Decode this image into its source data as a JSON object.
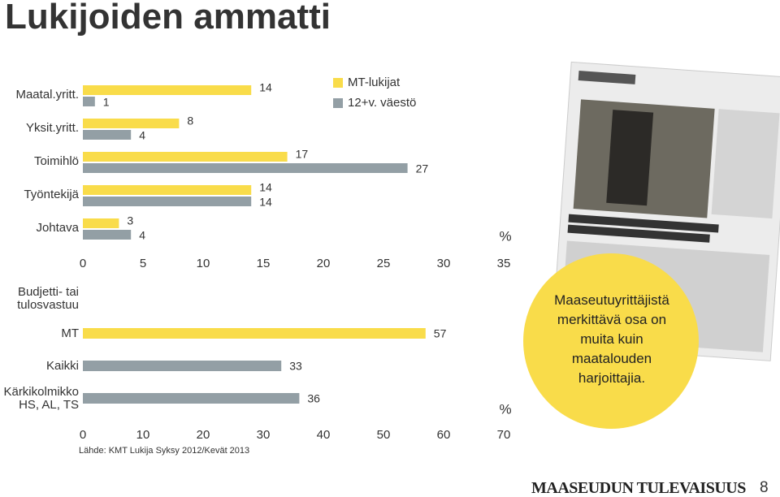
{
  "title": "Lukijoiden ammatti",
  "callout": "Maaseutuyrittäjistä merkittävä osa on muita kuin maatalouden harjoittajia.",
  "logo": "MAASEUDUN TULEVAISUUS",
  "page_number": "8",
  "chart_data": [
    {
      "type": "bar",
      "orientation": "horizontal",
      "categories": [
        "Maatal.yritt.",
        "Yksit.yritt.",
        "Toimihlö",
        "Työntekijä",
        "Johtava"
      ],
      "series": [
        {
          "name": "MT-lukijat",
          "color": "#f9dc4a",
          "values": [
            14,
            8,
            17,
            14,
            3
          ]
        },
        {
          "name": "12+v. väestö",
          "color": "#939fa5",
          "values": [
            1,
            4,
            27,
            14,
            4
          ]
        }
      ],
      "xlim": [
        0,
        35
      ],
      "xticks": [
        0,
        5,
        10,
        15,
        20,
        25,
        30,
        35
      ],
      "x_unit": "%",
      "legend": "top-right"
    },
    {
      "type": "bar",
      "orientation": "horizontal",
      "subtitle": "Budjetti- tai\ntulosvastuu",
      "categories": [
        "MT",
        "Kaikki",
        "Kärkikolmikko\nHS, AL, TS"
      ],
      "values": [
        57,
        33,
        36
      ],
      "colors": [
        "#f9dc4a",
        "#939fa5",
        "#939fa5"
      ],
      "xlim": [
        0,
        70
      ],
      "xticks": [
        0,
        10,
        20,
        30,
        40,
        50,
        60,
        70
      ],
      "x_unit": "%",
      "source": "Lähde: KMT Lukija Syksy 2012/Kevät 2013"
    }
  ]
}
